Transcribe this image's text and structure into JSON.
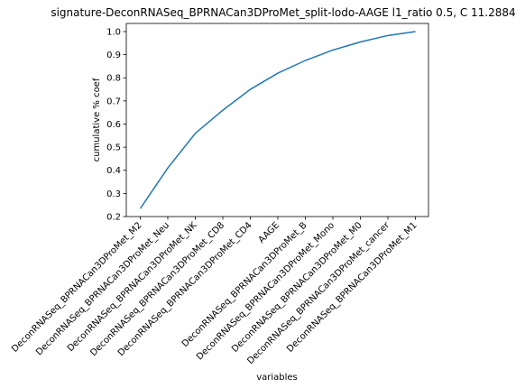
{
  "chart_data": {
    "type": "line",
    "title": "signature-DeconRNASeq_BPRNACan3DProMet_split-lodo-AAGE l1_ratio 0.5, C 11.2884",
    "xlabel": "variables",
    "ylabel": "cumulative % coef",
    "categories": [
      "DeconRNASeq_BPRNACan3DProMet_M2",
      "DeconRNASeq_BPRNACan3DProMet_Neu",
      "DeconRNASeq_BPRNACan3DProMet_NK",
      "DeconRNASeq_BPRNACan3DProMet_CD8",
      "DeconRNASeq_BPRNACan3DProMet_CD4",
      "AAGE",
      "DeconRNASeq_BPRNACan3DProMet_B",
      "DeconRNASeq_BPRNACan3DProMet_Mono",
      "DeconRNASeq_BPRNACan3DProMet_M0",
      "DeconRNASeq_BPRNACan3DProMet_cancer",
      "DeconRNASeq_BPRNACan3DProMet_M1"
    ],
    "series": [
      {
        "values": [
          0.235,
          0.41,
          0.56,
          0.66,
          0.75,
          0.82,
          0.875,
          0.92,
          0.955,
          0.983,
          1.0
        ],
        "color": "#1f77b4"
      }
    ],
    "ylim": [
      0.2,
      1.035
    ],
    "yticks": [
      0.2,
      0.3,
      0.4,
      0.5,
      0.6,
      0.7,
      0.8,
      0.9,
      1.0
    ],
    "ytick_labels": [
      "0.2",
      "0.3",
      "0.4",
      "0.5",
      "0.6",
      "0.7",
      "0.8",
      "0.9",
      "1.0"
    ],
    "grid": false
  }
}
